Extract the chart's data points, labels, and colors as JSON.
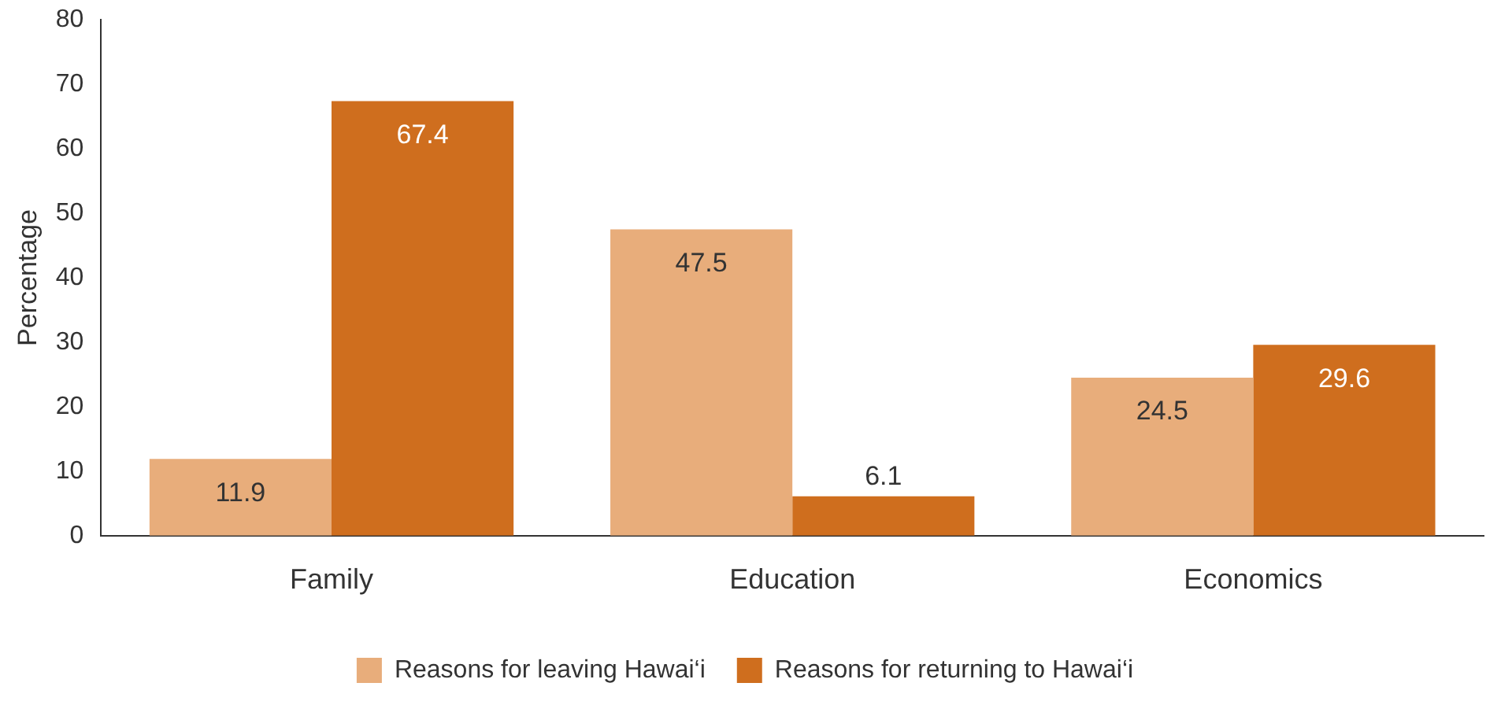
{
  "chart_data": {
    "type": "bar",
    "ylabel": "Percentage",
    "categories": [
      "Family",
      "Education",
      "Economics"
    ],
    "series": [
      {
        "name": "Reasons for leaving Hawai‘i",
        "color": "#e8ad7b",
        "values": [
          11.9,
          47.5,
          24.5
        ]
      },
      {
        "name": "Reasons for returning to Hawai‘i",
        "color": "#cf6e1e",
        "values": [
          67.4,
          6.1,
          29.6
        ]
      }
    ],
    "ylim": [
      0,
      80
    ],
    "yticks": [
      0,
      10,
      20,
      30,
      40,
      50,
      60,
      70,
      80
    ],
    "grid": false,
    "legend": "bottom",
    "data_labels": true
  }
}
